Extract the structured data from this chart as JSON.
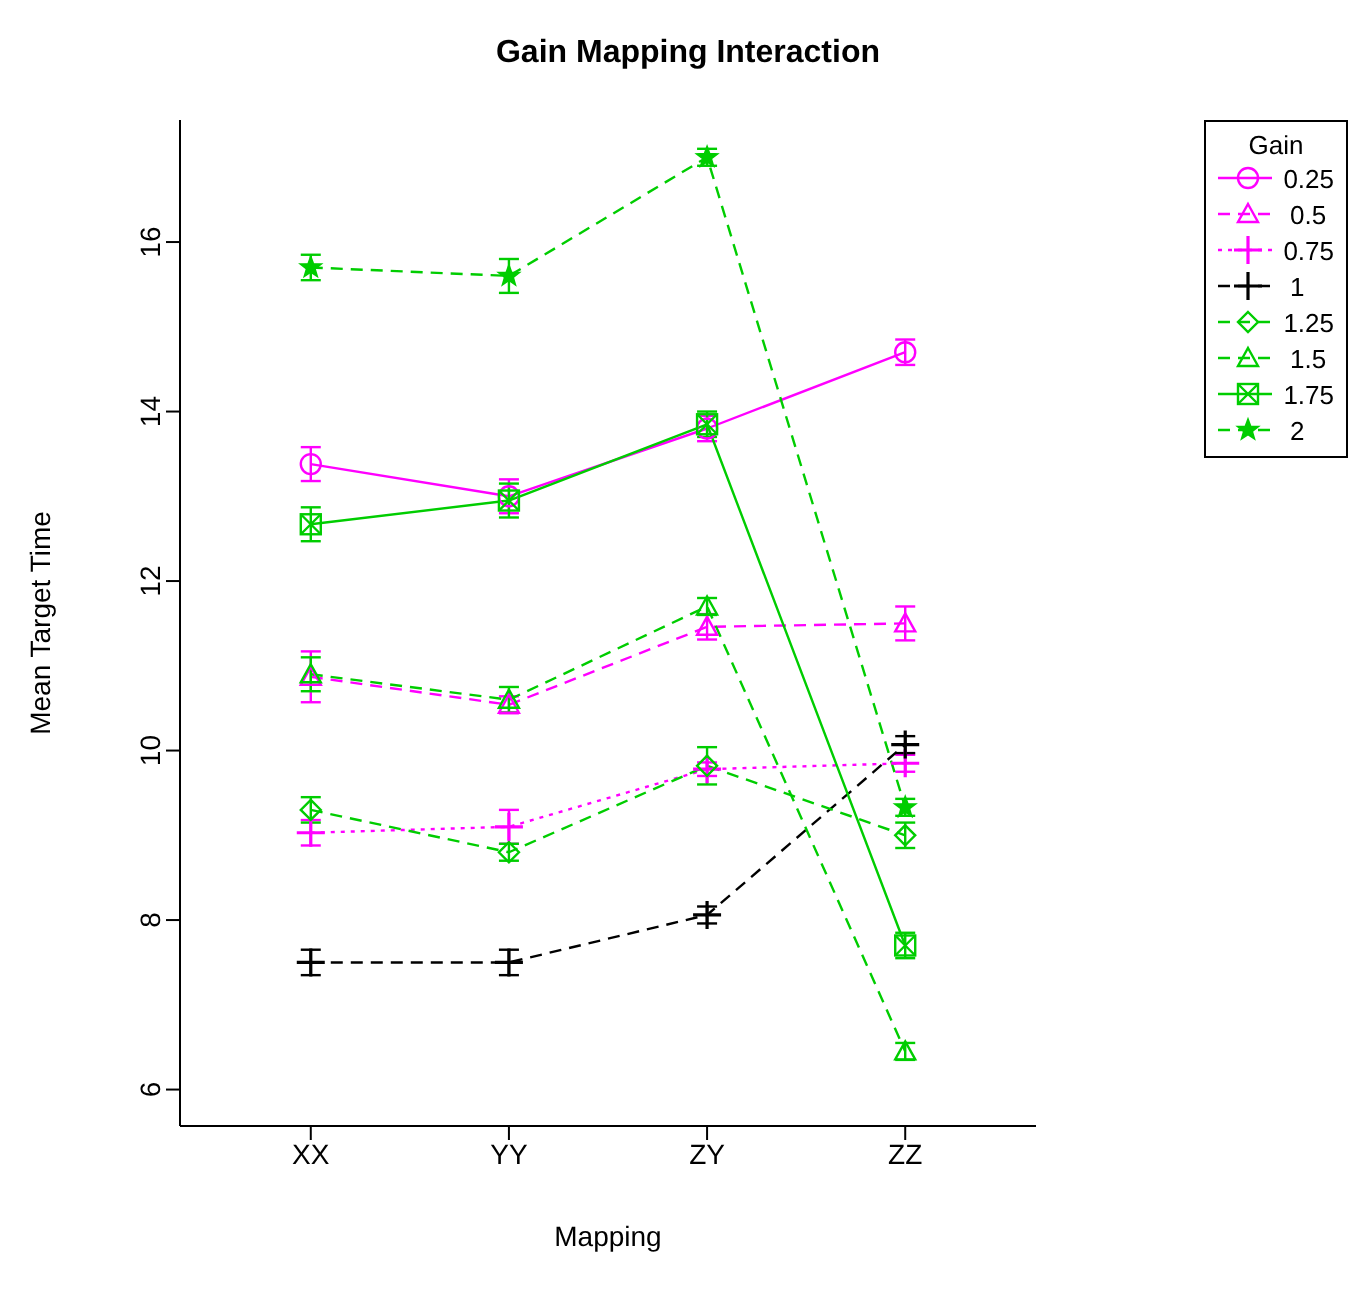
{
  "chart_data": {
    "type": "line",
    "title": "Gain Mapping Interaction",
    "xlabel": "Mapping",
    "ylabel": "Mean Target Time",
    "legend_title": "Gain",
    "categories": [
      "XX",
      "YY",
      "ZY",
      "ZZ"
    ],
    "ylim": [
      5.57,
      17.44
    ],
    "yticks": [
      6,
      8,
      10,
      12,
      14,
      16
    ],
    "legend": "right",
    "grid": false,
    "series": [
      {
        "name": "0.25",
        "color": "#ff00ff",
        "marker": "circle",
        "line_style": "solid",
        "values": [
          13.38,
          13.0,
          13.8,
          14.7
        ],
        "errors": [
          0.2,
          0.2,
          0.15,
          0.15
        ]
      },
      {
        "name": "0.5",
        "color": "#ff00ff",
        "marker": "triangle",
        "line_style": "dashed",
        "values": [
          10.87,
          10.54,
          11.46,
          11.5
        ],
        "errors": [
          0.3,
          0.1,
          0.15,
          0.2
        ]
      },
      {
        "name": "0.75",
        "color": "#ff00ff",
        "marker": "cross",
        "line_style": "dotted",
        "values": [
          9.03,
          9.1,
          9.78,
          9.85
        ],
        "errors": [
          0.15,
          0.2,
          0.08,
          0.1
        ]
      },
      {
        "name": "1",
        "color": "#000000",
        "marker": "cross",
        "line_style": "dashed",
        "values": [
          7.5,
          7.5,
          8.06,
          10.07
        ],
        "errors": [
          0.15,
          0.15,
          0.1,
          0.1
        ]
      },
      {
        "name": "1.25",
        "color": "#00cd00",
        "marker": "diamond",
        "line_style": "dashed",
        "values": [
          9.3,
          8.8,
          9.82,
          9.0
        ],
        "errors": [
          0.15,
          0.1,
          0.22,
          0.15
        ]
      },
      {
        "name": "1.5",
        "color": "#00cd00",
        "marker": "triangle",
        "line_style": "dashed",
        "values": [
          10.9,
          10.6,
          11.7,
          6.45
        ],
        "errors": [
          0.2,
          0.15,
          0.1,
          0.1
        ]
      },
      {
        "name": "1.75",
        "color": "#00cd00",
        "marker": "square",
        "line_style": "solid",
        "values": [
          12.67,
          12.95,
          13.85,
          7.7
        ],
        "errors": [
          0.2,
          0.2,
          0.15,
          0.15
        ]
      },
      {
        "name": "2",
        "color": "#00cd00",
        "marker": "star",
        "line_style": "dashed",
        "values": [
          15.7,
          15.6,
          17.0,
          9.33
        ],
        "errors": [
          0.15,
          0.2,
          0.1,
          0.1
        ]
      }
    ]
  }
}
